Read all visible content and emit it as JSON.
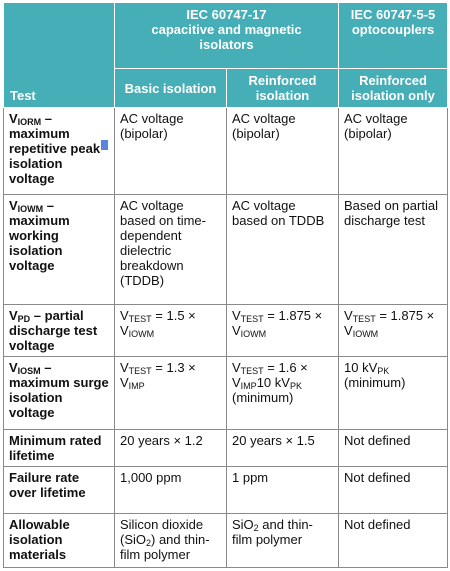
{
  "header": {
    "test": "Test",
    "iec_60747_17_line1": "IEC 60747-17",
    "iec_60747_17_line2": "capacitive and magnetic isolators",
    "iec_60747_5_5_line1": "IEC 60747-5-5",
    "iec_60747_5_5_line2": "optocouplers",
    "basic_isolation": "Basic isolation",
    "reinforced_isolation": "Reinforced isolation",
    "reinforced_isolation_only": "Reinforced isolation only"
  },
  "rows": [
    {
      "label_v": "V",
      "label_sub": "IORM",
      "label_rest": " – maximum repetitive peak isolation voltage",
      "basic": "AC voltage (bipolar)",
      "reinforced": "AC voltage (bipolar)",
      "opto": "AC voltage (bipolar)"
    },
    {
      "label_v": "V",
      "label_sub": "IOWM",
      "label_rest": " – maximum working isolation voltage",
      "basic": "AC voltage based on time-dependent dielectric breakdown (TDDB)",
      "reinforced": "AC voltage based on TDDB",
      "opto": "Based on partial discharge test"
    },
    {
      "label_v": "V",
      "label_sub": "PD",
      "label_rest": " – partial discharge test voltage",
      "basic_v": "V",
      "basic_sub1": "TEST",
      "basic_mid": " = 1.5 × V",
      "basic_sub2": "IOWM",
      "reinforced_v": "V",
      "reinforced_sub1": "TEST",
      "reinforced_mid": " = 1.875 × V",
      "reinforced_sub2": "IOWM",
      "opto_v": "V",
      "opto_sub1": "TEST",
      "opto_mid": " = 1.875 × V",
      "opto_sub2": "IOWM"
    },
    {
      "label_v": "V",
      "label_sub": "IOSM",
      "label_rest": " – maximum surge isolation voltage",
      "basic_v": "V",
      "basic_sub1": "TEST",
      "basic_mid": " = 1.3 × V",
      "basic_sub2": "IMP",
      "reinforced_v": "V",
      "reinforced_sub1": "TEST",
      "reinforced_mid": " = 1.6 × V",
      "reinforced_sub2": "IMP",
      "reinforced_tail1": "10 kV",
      "reinforced_sub3": "PK",
      "reinforced_tail2": " (minimum)",
      "opto_pre": "10 kV",
      "opto_sub": "PK",
      "opto_post": " (minimum)"
    },
    {
      "label": "Minimum rated lifetime",
      "basic": "20 years × 1.2",
      "reinforced": "20 years × 1.5",
      "opto": "Not defined"
    },
    {
      "label": "Failure rate over lifetime",
      "basic": "1,000 ppm",
      "reinforced": "1 ppm",
      "opto": "Not defined"
    },
    {
      "label": "Allowable isolation materials",
      "basic_pre": "Silicon dioxide (SiO",
      "basic_sub": "2",
      "basic_post": ") and thin-film polymer",
      "reinforced_pre": "SiO",
      "reinforced_sub": "2",
      "reinforced_post": " and thin-film polymer",
      "opto": "Not defined"
    }
  ],
  "colors": {
    "header_bg": "#45aeb7",
    "header_text": "#ffffff",
    "cell_border": "#8a8a8a",
    "text_cursor": "#3f6fd8"
  }
}
